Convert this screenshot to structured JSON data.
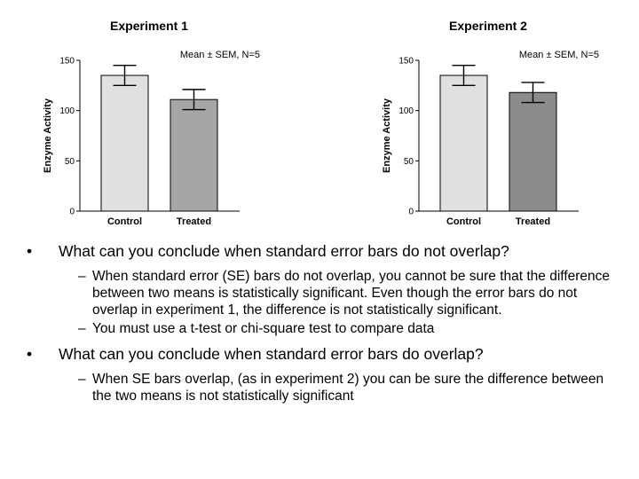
{
  "chart_data": [
    {
      "type": "bar",
      "title": "Experiment 1",
      "annotation": "Mean ± SEM, N=5",
      "ylabel": "Enzyme Activity",
      "xlabel": "",
      "categories": [
        "Control",
        "Treated"
      ],
      "values": [
        135,
        111
      ],
      "error": [
        10,
        10
      ],
      "ylim": [
        0,
        150
      ],
      "yticks": [
        "0",
        "50",
        "100",
        "150"
      ],
      "colors": [
        "#e0e0e0",
        "#a6a6a6"
      ],
      "grid": false
    },
    {
      "type": "bar",
      "title": "Experiment 2",
      "annotation": "Mean ± SEM, N=5",
      "ylabel": "Enzyme Activity",
      "xlabel": "",
      "categories": [
        "Control",
        "Treated"
      ],
      "values": [
        135,
        118
      ],
      "error": [
        10,
        10
      ],
      "ylim": [
        0,
        150
      ],
      "yticks": [
        "0",
        "50",
        "100",
        "150"
      ],
      "colors": [
        "#e0e0e0",
        "#8c8c8c"
      ],
      "grid": false
    }
  ],
  "bullets": [
    {
      "text": "What can you conclude when standard error bars do not overlap?",
      "sub": [
        "When standard error (SE) bars do not overlap, you cannot be sure that the difference between two means is statistically significant. Even though the error bars do not overlap in experiment 1, the difference is not statistically significant.",
        "You must use a t-test or chi-square test to compare data"
      ]
    },
    {
      "text": "What can you conclude when standard error bars do overlap?",
      "sub": [
        "When SE bars overlap, (as in experiment 2) you can be sure the difference between the two means is not statistically significant"
      ]
    }
  ],
  "markers": {
    "bullet": "•",
    "dash": "–"
  }
}
